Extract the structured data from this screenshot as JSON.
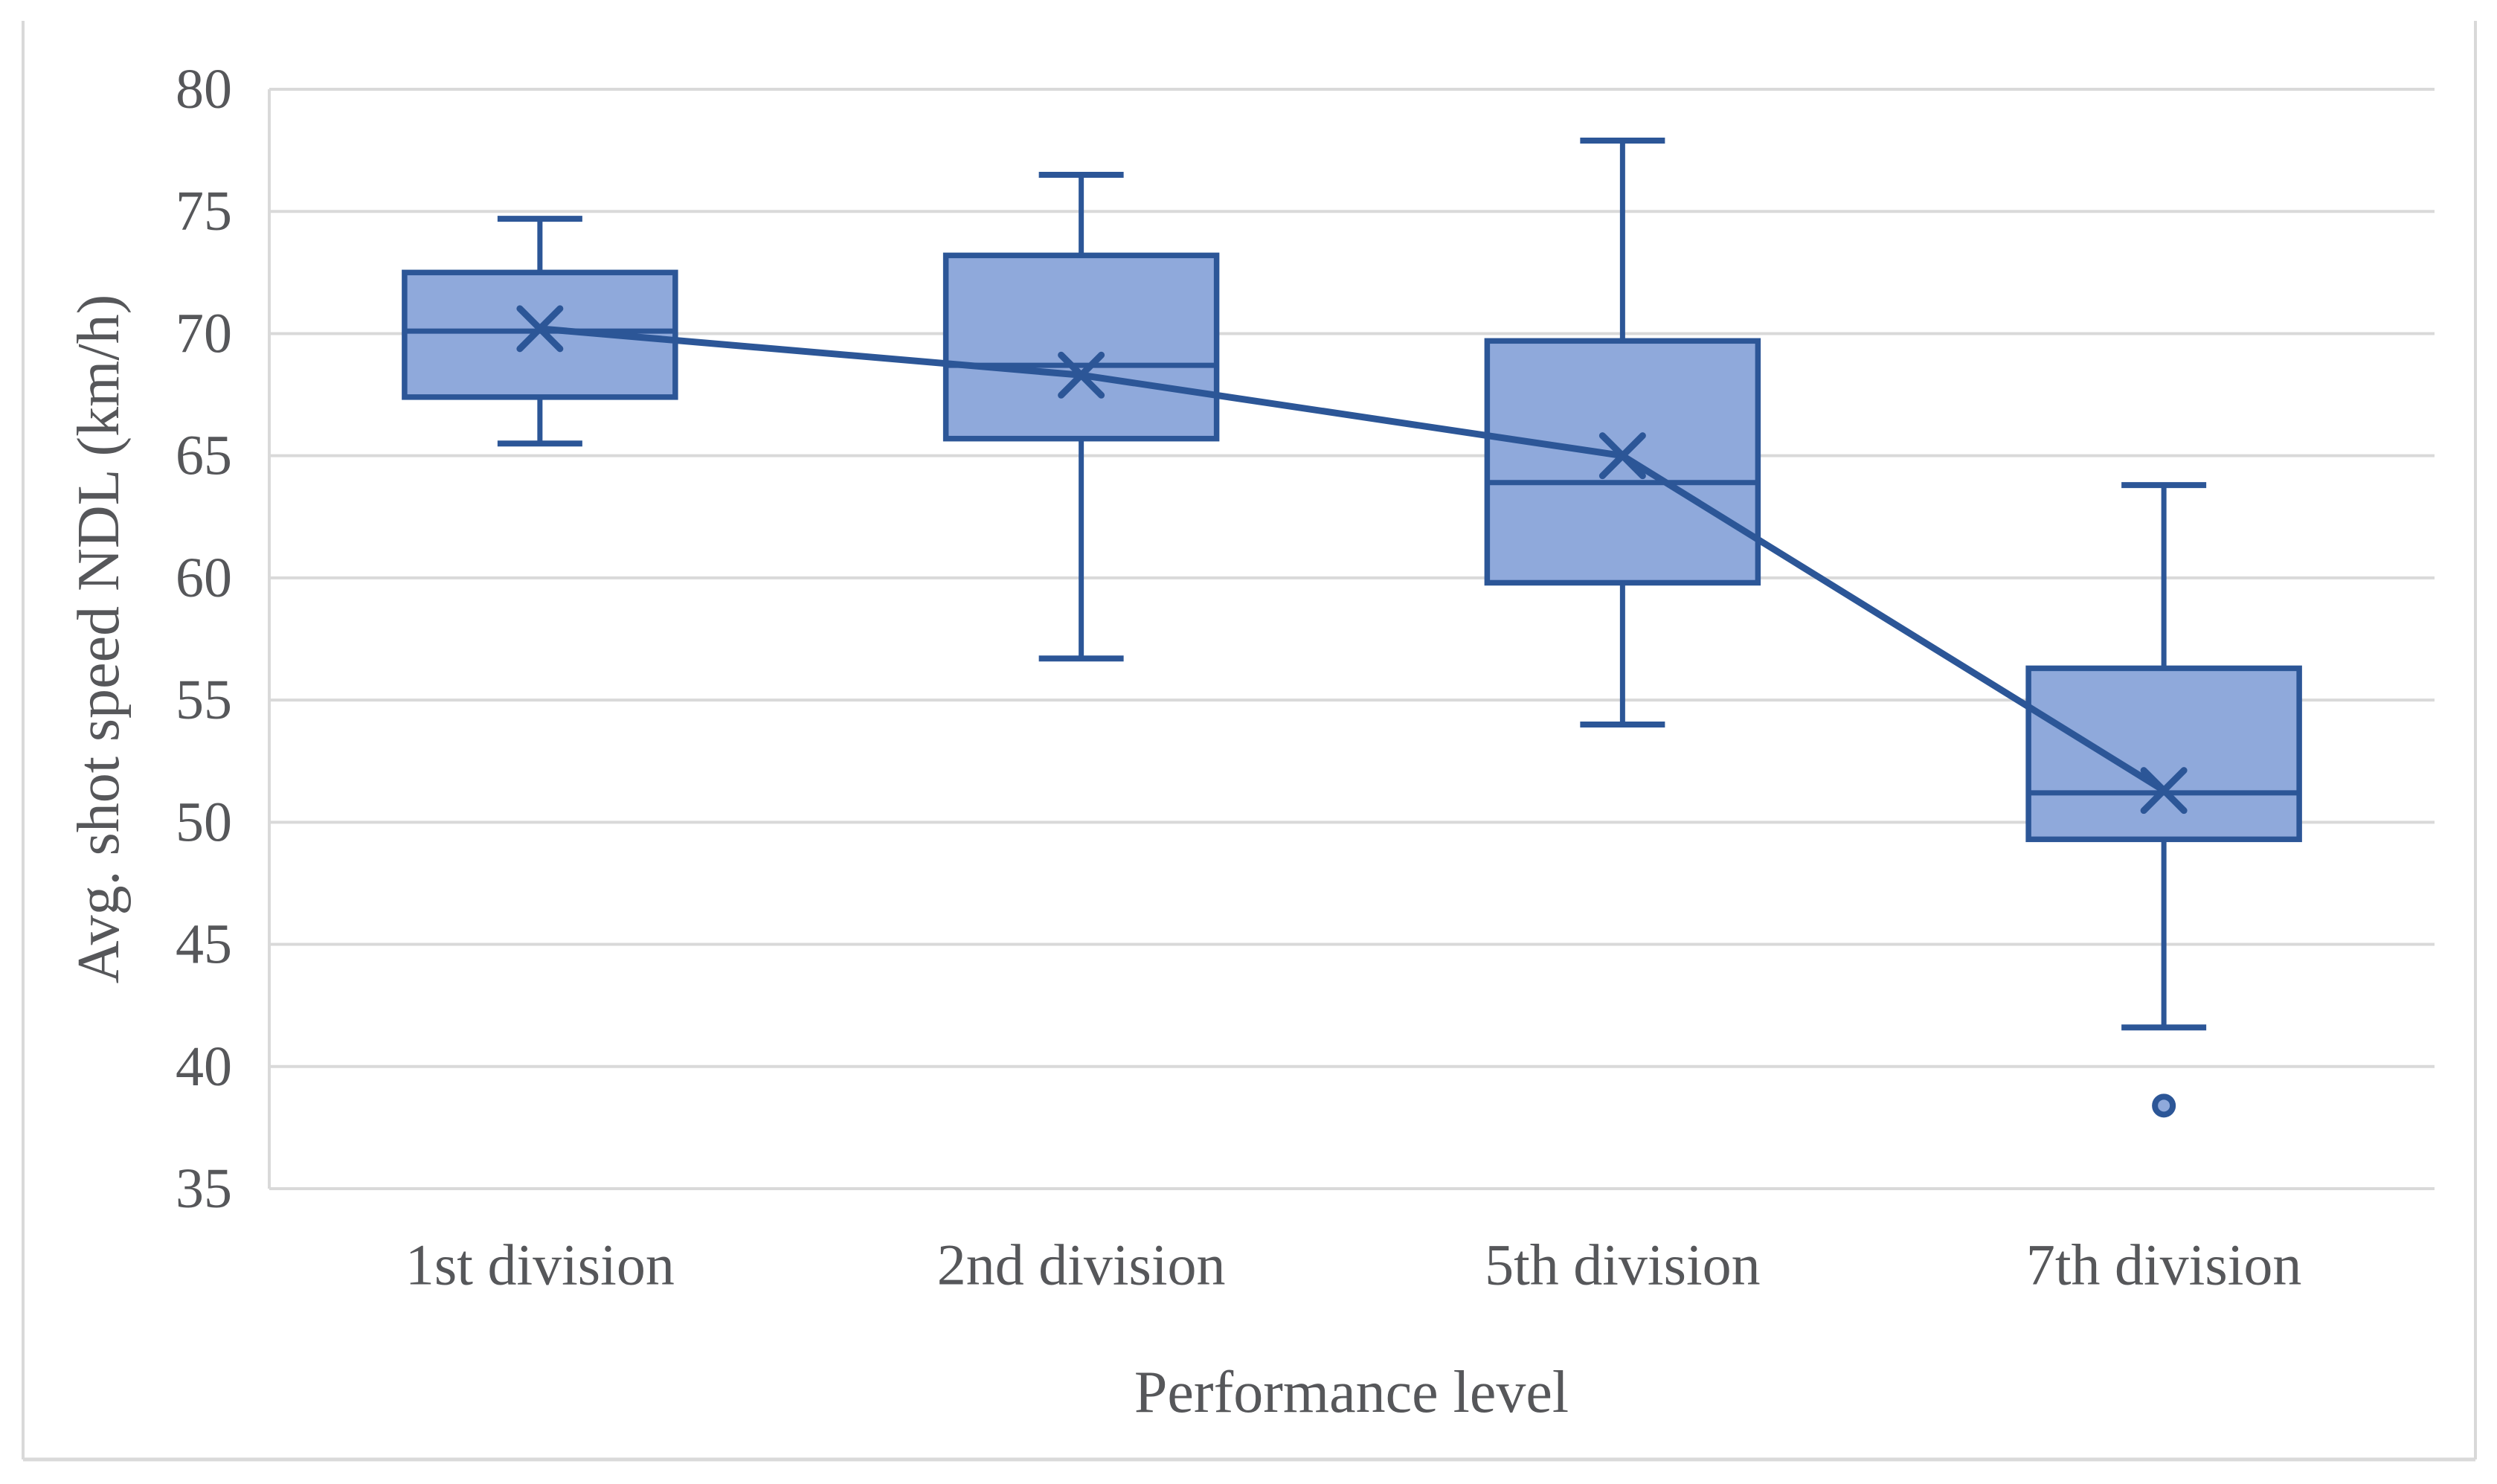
{
  "figure": {
    "background": "#ffffff",
    "border_color": "#d9d9d9"
  },
  "chart_data": {
    "type": "box",
    "title": "",
    "xlabel": "Performance level",
    "ylabel": "Avg. shot speed NDL (km/h)",
    "categories": [
      "1st division",
      "2nd division",
      "5th division",
      "7th division"
    ],
    "ylim": [
      35,
      80
    ],
    "yticks": [
      80,
      75,
      70,
      65,
      60,
      55,
      50,
      45,
      40,
      35
    ],
    "grid": true,
    "legend": "none",
    "mean_line_connects_means": true,
    "series": [
      {
        "category": "1st division",
        "whisker_low": 65.5,
        "q1": 67.4,
        "median": 70.1,
        "mean": 70.2,
        "q3": 72.5,
        "whisker_high": 74.7,
        "outliers": []
      },
      {
        "category": "2nd division",
        "whisker_low": 56.7,
        "q1": 65.7,
        "median": 68.7,
        "mean": 68.3,
        "q3": 73.2,
        "whisker_high": 76.5,
        "outliers": []
      },
      {
        "category": "5th division",
        "whisker_low": 54.0,
        "q1": 59.8,
        "median": 63.9,
        "mean": 65.0,
        "q3": 69.7,
        "whisker_high": 77.9,
        "outliers": []
      },
      {
        "category": "7th division",
        "whisker_low": 41.6,
        "q1": 49.3,
        "median": 51.2,
        "mean": 51.3,
        "q3": 56.3,
        "whisker_high": 63.8,
        "outliers": [
          38.4
        ]
      }
    ],
    "colors": {
      "box_fill": "#8fa9db",
      "box_stroke": "#2c5697",
      "mean_marker": "#2c5697",
      "mean_line": "#2c5697",
      "outlier_fill": "#8fa9db",
      "outlier_stroke": "#2c5697",
      "gridline": "#d9d9d9",
      "axis_line": "#d9d9d9",
      "text": "#56575a"
    }
  }
}
